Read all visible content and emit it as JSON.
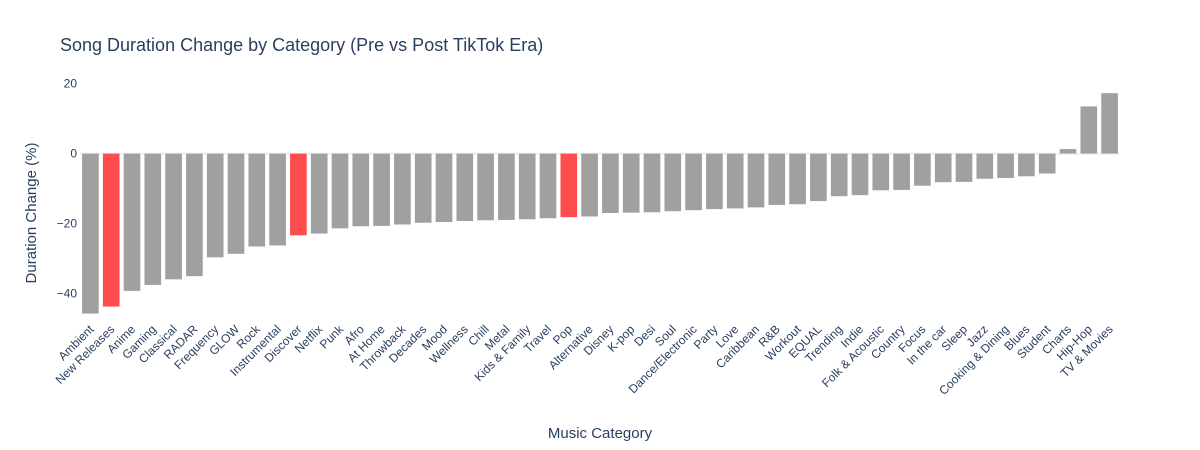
{
  "chart_data": {
    "type": "bar",
    "title": "Song Duration Change by Category (Pre vs Post TikTok Era)",
    "xlabel": "Music Category",
    "ylabel": "Duration Change (%)",
    "ylim": [
      -46.5,
      20.5
    ],
    "yticks": [
      -40,
      -20,
      0,
      20
    ],
    "grid": false,
    "categories": [
      "Ambient",
      "New Releases",
      "Anime",
      "Gaming",
      "Classical",
      "RADAR",
      "Frequency",
      "GLOW",
      "Rock",
      "Instrumental",
      "Discover",
      "Netflix",
      "Punk",
      "Afro",
      "At Home",
      "Throwback",
      "Decades",
      "Mood",
      "Wellness",
      "Chill",
      "Metal",
      "Kids & Family",
      "Travel",
      "Pop",
      "Alternative",
      "Disney",
      "K-pop",
      "Desi",
      "Soul",
      "Dance/Electronic",
      "Party",
      "Love",
      "Caribbean",
      "R&B",
      "Workout",
      "EQUAL",
      "Trending",
      "Indie",
      "Folk & Acoustic",
      "Country",
      "Focus",
      "In the car",
      "Sleep",
      "Jazz",
      "Cooking & Dining",
      "Blues",
      "Student",
      "Charts",
      "Hip-Hop",
      "TV & Movies"
    ],
    "values": [
      -45.8,
      -43.8,
      -39.3,
      -37.6,
      -36.0,
      -35.1,
      -29.7,
      -28.7,
      -26.6,
      -26.3,
      -23.4,
      -22.9,
      -21.4,
      -20.8,
      -20.7,
      -20.3,
      -19.8,
      -19.6,
      -19.3,
      -19.1,
      -19.0,
      -18.8,
      -18.5,
      -18.2,
      -18.0,
      -17.0,
      -16.9,
      -16.8,
      -16.5,
      -16.2,
      -15.9,
      -15.7,
      -15.4,
      -14.7,
      -14.5,
      -13.6,
      -12.2,
      -11.9,
      -10.5,
      -10.4,
      -9.2,
      -8.2,
      -8.1,
      -7.2,
      -7.0,
      -6.5,
      -5.7,
      1.3,
      13.5,
      17.3
    ],
    "colors": {
      "default": "#a0a0a0",
      "highlight": "#ff4d4d",
      "highlighted": [
        "New Releases",
        "Discover",
        "Pop"
      ],
      "text": "#2a3f5f"
    }
  }
}
